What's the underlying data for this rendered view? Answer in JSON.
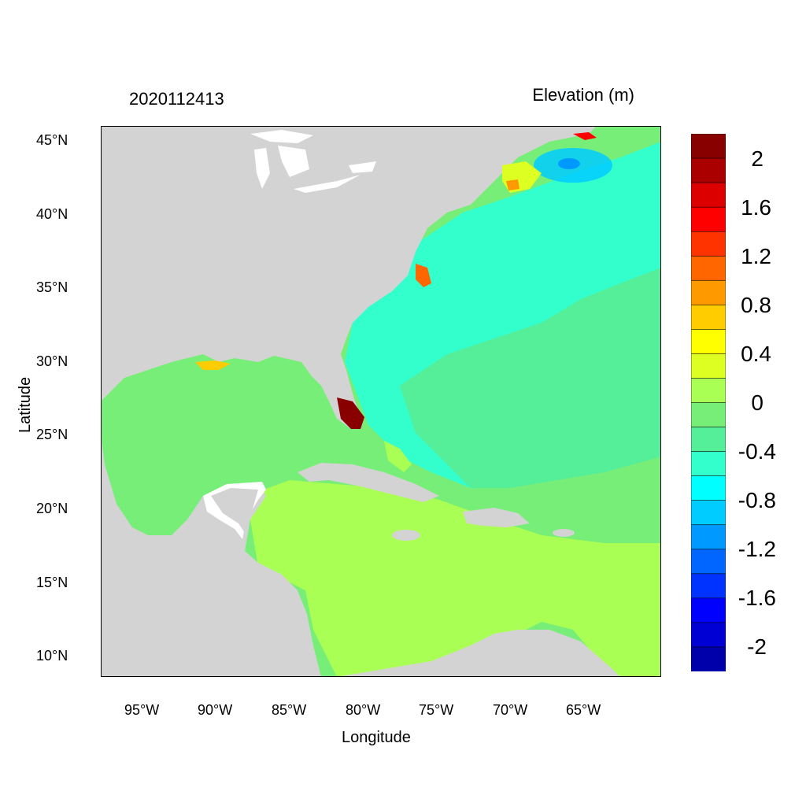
{
  "header": {
    "date_code": "2020112413",
    "variable_title": "Elevation (m)"
  },
  "axes": {
    "x_label": "Longitude",
    "y_label": "Latitude",
    "x_ticks": [
      "95°W",
      "90°W",
      "85°W",
      "80°W",
      "75°W",
      "70°W",
      "65°W"
    ],
    "y_ticks": [
      "45°N",
      "40°N",
      "35°N",
      "30°N",
      "25°N",
      "20°N",
      "15°N",
      "10°N"
    ]
  },
  "colorbar": {
    "colors": [
      "#0000aa",
      "#0000d4",
      "#0000ff",
      "#0033ff",
      "#0066ff",
      "#0099ff",
      "#00ccff",
      "#00ffff",
      "#33ffcc",
      "#55ee99",
      "#77ee77",
      "#aaff55",
      "#ddff22",
      "#ffff00",
      "#ffcc00",
      "#ff9900",
      "#ff6600",
      "#ff3300",
      "#ff0000",
      "#dd0000",
      "#aa0000",
      "#880000"
    ],
    "labels": [
      "2",
      "1.6",
      "1.2",
      "0.8",
      "0.4",
      "0",
      "-0.4",
      "-0.8",
      "-1.2",
      "-1.6",
      "-2"
    ]
  },
  "colors": {
    "land": "#d3d3d3",
    "lakes": "#ffffff",
    "ocean_default": "#77ee77",
    "atlantic_low": "#33ffcc",
    "caribbean": "#aaff55",
    "surge_high": "#880000"
  }
}
